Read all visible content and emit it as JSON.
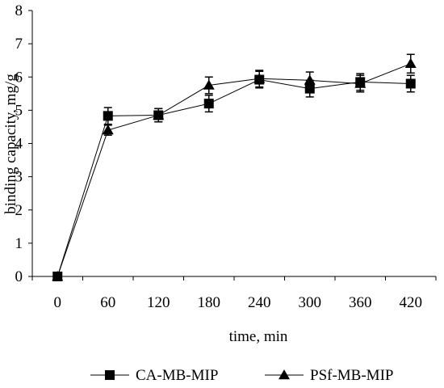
{
  "chart_data": {
    "type": "line",
    "title": "",
    "xlabel": "time, min",
    "ylabel": "binding capacity, mg/g",
    "x": [
      0,
      60,
      120,
      180,
      240,
      300,
      360,
      420
    ],
    "xticks": [
      "0",
      "60",
      "120",
      "180",
      "240",
      "300",
      "360",
      "420"
    ],
    "yticks": [
      "0",
      "1",
      "2",
      "3",
      "4",
      "5",
      "6",
      "7",
      "8"
    ],
    "ylim": [
      0,
      8
    ],
    "grid": false,
    "legend_position": "bottom",
    "series": [
      {
        "name": "CA-MB-MIP",
        "marker": "square",
        "values": [
          0,
          4.83,
          4.85,
          5.2,
          5.92,
          5.65,
          5.85,
          5.8
        ],
        "errors": [
          0,
          0.25,
          0.2,
          0.25,
          0.25,
          0.25,
          0.25,
          0.25
        ]
      },
      {
        "name": "PSf-MB-MIP",
        "marker": "triangle",
        "values": [
          0,
          4.4,
          4.85,
          5.75,
          5.95,
          5.9,
          5.8,
          6.4
        ],
        "errors": [
          0,
          0.15,
          0.2,
          0.25,
          0.25,
          0.25,
          0.25,
          0.28
        ]
      }
    ]
  }
}
